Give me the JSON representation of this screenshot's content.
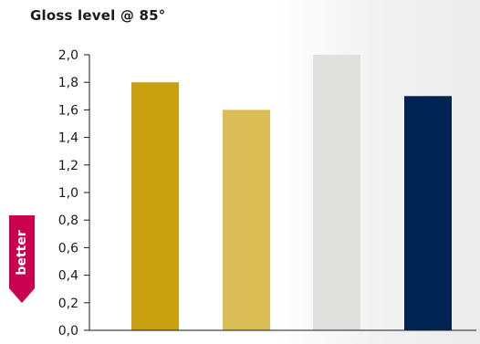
{
  "title": "Gloss level @ 85°",
  "better_label": "better",
  "colors": {
    "axis": "#1a1a1a",
    "badge": "#c8004e",
    "bars": [
      "#c7a10f",
      "#dbbd55",
      "#e0e0df",
      "#002451"
    ]
  },
  "chart_data": {
    "type": "bar",
    "title": "Gloss level @ 85°",
    "xlabel": "",
    "ylabel": "",
    "categories": [
      "",
      "",
      "",
      ""
    ],
    "values": [
      1.8,
      1.6,
      2.0,
      1.7
    ],
    "ylim": [
      0,
      2.0
    ],
    "yticks": [
      "0,0",
      "0,2",
      "0,4",
      "0,6",
      "0,8",
      "1,0",
      "1,2",
      "1,4",
      "1,6",
      "1,8",
      "2,0"
    ],
    "grid": false,
    "legend": "none"
  }
}
